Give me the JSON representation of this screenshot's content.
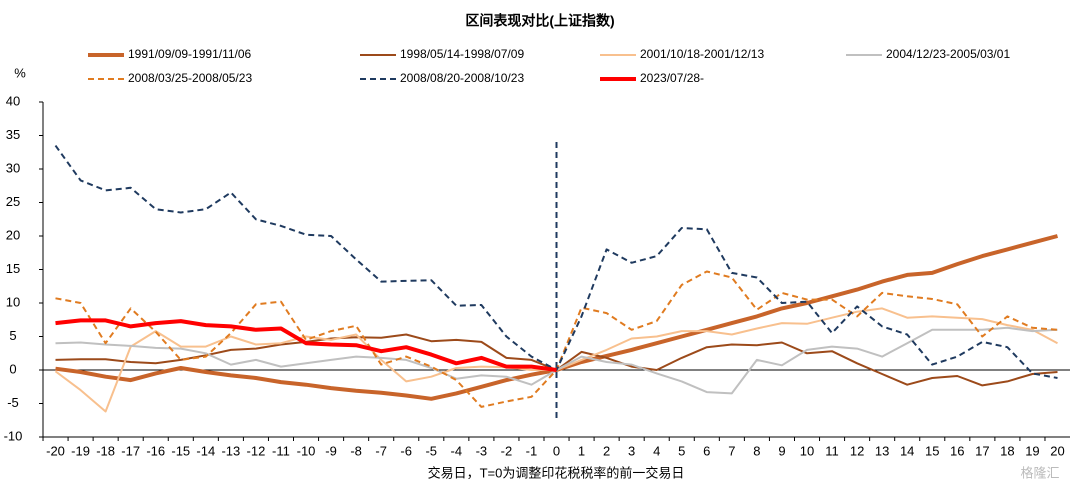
{
  "chart_data": {
    "type": "line",
    "title": "区间表现对比(上证指数)",
    "y_label": "%",
    "x_label": "交易日，T=0为调整印花税税率的前一交易日",
    "watermark": "格隆汇",
    "x": [
      -20,
      -19,
      -18,
      -17,
      -16,
      -15,
      -14,
      -13,
      -12,
      -11,
      -10,
      -9,
      -8,
      -7,
      -6,
      -5,
      -4,
      -3,
      -2,
      -1,
      0,
      1,
      2,
      3,
      4,
      5,
      6,
      7,
      8,
      9,
      10,
      11,
      12,
      13,
      14,
      15,
      16,
      17,
      18,
      19,
      20
    ],
    "xlim": [
      -20.5,
      20.5
    ],
    "xticks": [
      -20,
      -19,
      -18,
      -17,
      -16,
      -15,
      -14,
      -13,
      -12,
      -11,
      -10,
      -9,
      -8,
      -7,
      -6,
      -5,
      -4,
      -3,
      -2,
      -1,
      0,
      1,
      2,
      3,
      4,
      5,
      6,
      7,
      8,
      9,
      10,
      11,
      12,
      13,
      14,
      15,
      16,
      17,
      18,
      19,
      20
    ],
    "ylim": [
      -10,
      40
    ],
    "yticks": [
      -10,
      -5,
      0,
      5,
      10,
      15,
      20,
      25,
      30,
      35,
      40
    ],
    "grid": false,
    "legend": "top",
    "series": [
      {
        "name": "1991/09/09-1991/11/06",
        "color": "#c8642a",
        "width": 4,
        "dashed": false,
        "values": [
          0.2,
          -0.3,
          -1,
          -1.5,
          -0.5,
          0.3,
          -0.3,
          -0.8,
          -1.2,
          -1.8,
          -2.2,
          -2.7,
          -3.1,
          -3.4,
          -3.8,
          -4.3,
          -3.5,
          -2.5,
          -1.5,
          -0.7,
          0,
          1.2,
          2.1,
          3,
          4,
          5,
          6,
          7,
          8,
          9.2,
          10,
          11,
          12,
          13.2,
          14.2,
          14.5,
          15.8,
          17,
          18,
          19,
          20
        ]
      },
      {
        "name": "1998/05/14-1998/07/09",
        "color": "#9c4a1a",
        "width": 2,
        "dashed": false,
        "values": [
          1.5,
          1.6,
          1.6,
          1.2,
          1,
          1.5,
          2.2,
          3,
          3.2,
          3.8,
          4.2,
          4.7,
          4.9,
          4.8,
          5.3,
          4.3,
          4.5,
          4.2,
          1.8,
          1.5,
          0,
          2.7,
          1.8,
          0.5,
          0,
          1.8,
          3.4,
          3.8,
          3.7,
          4.1,
          2.5,
          2.8,
          1,
          -0.6,
          -2.2,
          -1.2,
          -0.9,
          -2.3,
          -1.7,
          -0.6,
          -0.3
        ]
      },
      {
        "name": "2001/10/18-2001/12/13",
        "color": "#f8c08e",
        "width": 2,
        "dashed": false,
        "values": [
          -0.2,
          -3,
          -6.2,
          3.5,
          5.8,
          3.5,
          3.5,
          5,
          3.8,
          4,
          5,
          4.5,
          5.3,
          1.5,
          -1.7,
          -1,
          0.3,
          0.5,
          0.4,
          0,
          0,
          1.5,
          3,
          4.7,
          5,
          5.8,
          5.8,
          5.3,
          6.2,
          7,
          6.9,
          7.8,
          8.7,
          9.2,
          7.8,
          8,
          7.8,
          7.6,
          6.7,
          6,
          4
        ]
      },
      {
        "name": "2004/12/23-2005/03/01",
        "color": "#c0c0c0",
        "width": 2,
        "dashed": false,
        "values": [
          4,
          4.1,
          3.8,
          3.6,
          3.3,
          3.2,
          2.5,
          0.8,
          1.5,
          0.5,
          1,
          1.5,
          2,
          1.8,
          1.5,
          0.3,
          -1.3,
          -0.8,
          -1,
          -2.2,
          0,
          2,
          1.2,
          0.8,
          -0.5,
          -1.7,
          -3.3,
          -3.5,
          1.5,
          0.7,
          3,
          3.5,
          3.2,
          2,
          4,
          6,
          6,
          6,
          6.3,
          5.8,
          6
        ]
      },
      {
        "name": "2008/03/25-2008/05/23",
        "color": "#e07b20",
        "width": 2,
        "dashed": true,
        "values": [
          10.7,
          10,
          4,
          9.2,
          5.7,
          1.5,
          2,
          5.5,
          9.8,
          10.2,
          4.5,
          5.8,
          6.6,
          0.8,
          2,
          0.5,
          -1.5,
          -5.5,
          -4.7,
          -4,
          0,
          9.3,
          8.5,
          6,
          7.3,
          12.7,
          14.7,
          13.8,
          9,
          11.5,
          10.5,
          10.5,
          8,
          11.5,
          11,
          10.6,
          9.8,
          5,
          8,
          6.3,
          6
        ]
      },
      {
        "name": "2008/08/20-2008/10/23",
        "color": "#1f3a5f",
        "width": 2,
        "dashed": true,
        "values": [
          33.5,
          28.3,
          26.8,
          27.2,
          24,
          23.5,
          24,
          26.5,
          22.5,
          21.5,
          20.2,
          20,
          16.5,
          13.2,
          13.3,
          13.4,
          9.6,
          9.7,
          5,
          2,
          0,
          8,
          18,
          16,
          17,
          21.2,
          21,
          14.5,
          13.8,
          10,
          10.2,
          5.5,
          9.5,
          6.5,
          5.3,
          0.8,
          2,
          4.2,
          3.4,
          -0.5,
          -1.2
        ]
      },
      {
        "name": "2023/07/28-",
        "color": "#ff0000",
        "width": 4,
        "dashed": false,
        "values": [
          7,
          7.4,
          7.4,
          6.5,
          7,
          7.3,
          6.7,
          6.5,
          6,
          6.2,
          4,
          3.8,
          3.7,
          2.8,
          3.4,
          2.3,
          1,
          1.8,
          0.5,
          0.5,
          0,
          null,
          null,
          null,
          null,
          null,
          null,
          null,
          null,
          null,
          null,
          null,
          null,
          null,
          null,
          null,
          null,
          null,
          null,
          null,
          null
        ]
      }
    ]
  }
}
